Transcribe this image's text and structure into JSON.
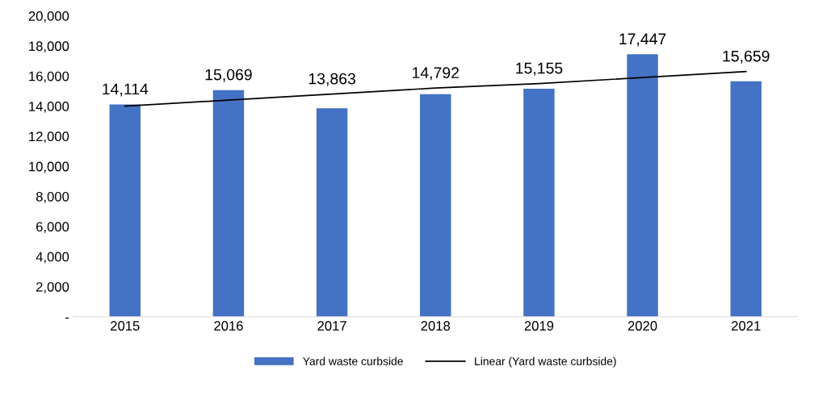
{
  "chart_data": {
    "type": "bar",
    "categories": [
      "2015",
      "2016",
      "2017",
      "2018",
      "2019",
      "2020",
      "2021"
    ],
    "series": [
      {
        "name": "Yard waste curbside",
        "color": "#4472c4",
        "values": [
          14114,
          15069,
          13863,
          14792,
          15155,
          17447,
          15659
        ],
        "value_labels": [
          "14,114",
          "15,069",
          "13,863",
          "14,792",
          "15,155",
          "17,447",
          "15,659"
        ]
      },
      {
        "name": "Linear (Yard waste curbside)",
        "type": "line",
        "color": "#000000",
        "values": [
          14000,
          14400,
          14800,
          15200,
          15500,
          15900,
          16300
        ]
      }
    ],
    "ylim": [
      0,
      20000
    ],
    "yticks": [
      {
        "value": 0,
        "label": "-"
      },
      {
        "value": 2000,
        "label": "2,000"
      },
      {
        "value": 4000,
        "label": "4,000"
      },
      {
        "value": 6000,
        "label": "6,000"
      },
      {
        "value": 8000,
        "label": "8,000"
      },
      {
        "value": 10000,
        "label": "10,000"
      },
      {
        "value": 12000,
        "label": "12,000"
      },
      {
        "value": 14000,
        "label": "14,000"
      },
      {
        "value": 16000,
        "label": "16,000"
      },
      {
        "value": 18000,
        "label": "18,000"
      },
      {
        "value": 20000,
        "label": "20,000"
      }
    ],
    "grid": false,
    "legend": "bottom"
  }
}
